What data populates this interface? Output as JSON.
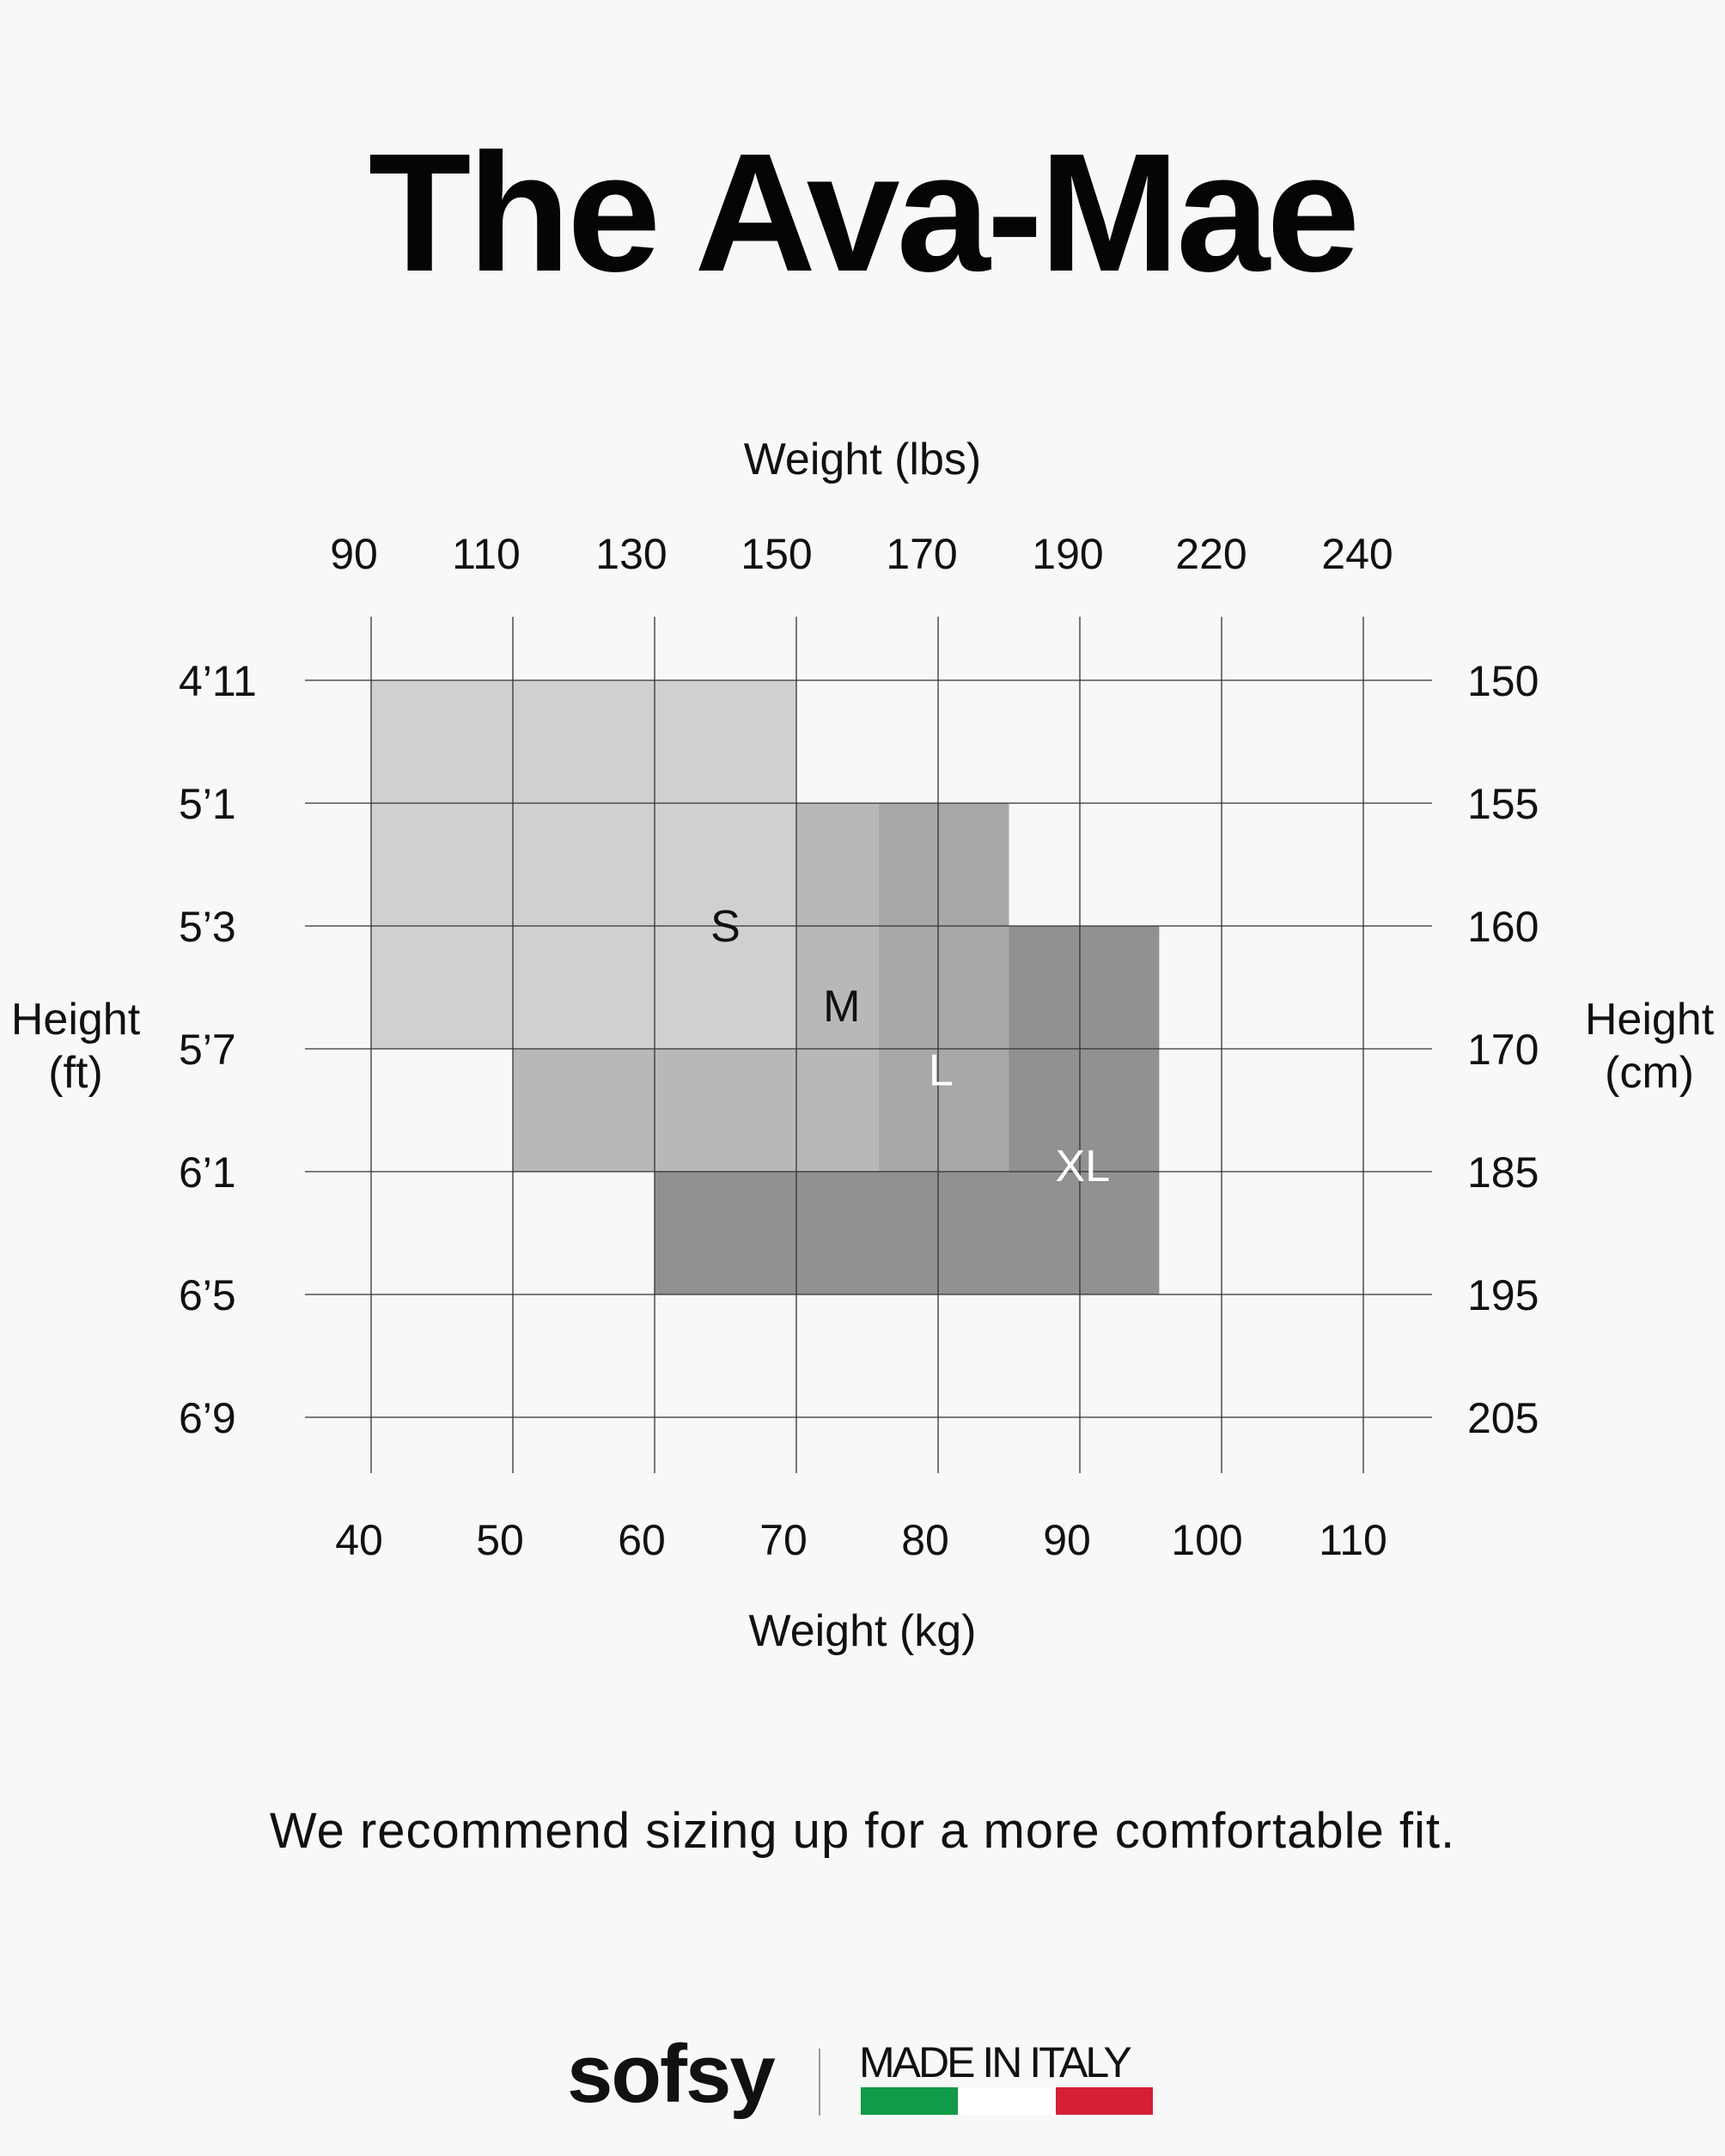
{
  "page": {
    "title": "The Ava-Mae",
    "note": "We recommend sizing up for a more comfortable fit."
  },
  "brand": {
    "name": "sofsy",
    "tagline": "MADE IN ITALY",
    "flag_colors": [
      "#119a47",
      "#ffffff",
      "#d51f35"
    ]
  },
  "chart_data": {
    "type": "heatmap",
    "title": "The Ava-Mae",
    "x_top": {
      "label": "Weight (lbs)",
      "ticks": [
        "90",
        "110",
        "130",
        "150",
        "170",
        "190",
        "220",
        "240"
      ]
    },
    "x_bottom": {
      "label": "Weight (kg)",
      "ticks": [
        "40",
        "50",
        "60",
        "70",
        "80",
        "90",
        "100",
        "110"
      ],
      "values": [
        40,
        50,
        60,
        70,
        80,
        90,
        100,
        110
      ],
      "range": [
        40,
        110
      ]
    },
    "y_left": {
      "label": [
        "Height",
        "(ft)"
      ],
      "ticks": [
        "4’11",
        "5’1",
        "5’3",
        "5’7",
        "6’1",
        "6’5",
        "6’9"
      ]
    },
    "y_right": {
      "label": [
        "Height",
        "(cm)"
      ],
      "ticks": [
        "150",
        "155",
        "160",
        "170",
        "185",
        "195",
        "205"
      ]
    },
    "grid": true,
    "sizes": [
      {
        "name": "S",
        "color": "#d0d0d0",
        "label_color": "#111111",
        "polygon_kg_row": [
          [
            40,
            0
          ],
          [
            70,
            0
          ],
          [
            70,
            3
          ],
          [
            40,
            3
          ]
        ]
      },
      {
        "name": "M",
        "color": "#b8b8b8",
        "label_color": "#111111",
        "polygon_kg_row": [
          [
            70,
            1
          ],
          [
            75.8,
            1
          ],
          [
            75.8,
            4
          ],
          [
            50,
            4
          ],
          [
            50,
            3
          ],
          [
            70,
            3
          ]
        ]
      },
      {
        "name": "L",
        "color": "#a8a8a8",
        "label_color": "#ffffff",
        "polygon_kg_row": [
          [
            75.8,
            1
          ],
          [
            85,
            1
          ],
          [
            85,
            4
          ],
          [
            75.8,
            4
          ]
        ]
      },
      {
        "name": "XL",
        "color": "#919191",
        "label_color": "#ffffff",
        "polygon_kg_row": [
          [
            85,
            2
          ],
          [
            95.6,
            2
          ],
          [
            95.6,
            5
          ],
          [
            60,
            5
          ],
          [
            60,
            4
          ],
          [
            85,
            4
          ]
        ]
      }
    ],
    "size_labels": [
      {
        "name": "S",
        "kg": 65,
        "row": 2.0
      },
      {
        "name": "M",
        "kg": 73.2,
        "row": 2.65
      },
      {
        "name": "L",
        "kg": 80.2,
        "row": 3.17
      },
      {
        "name": "XL",
        "kg": 90.2,
        "row": 3.95
      }
    ]
  }
}
